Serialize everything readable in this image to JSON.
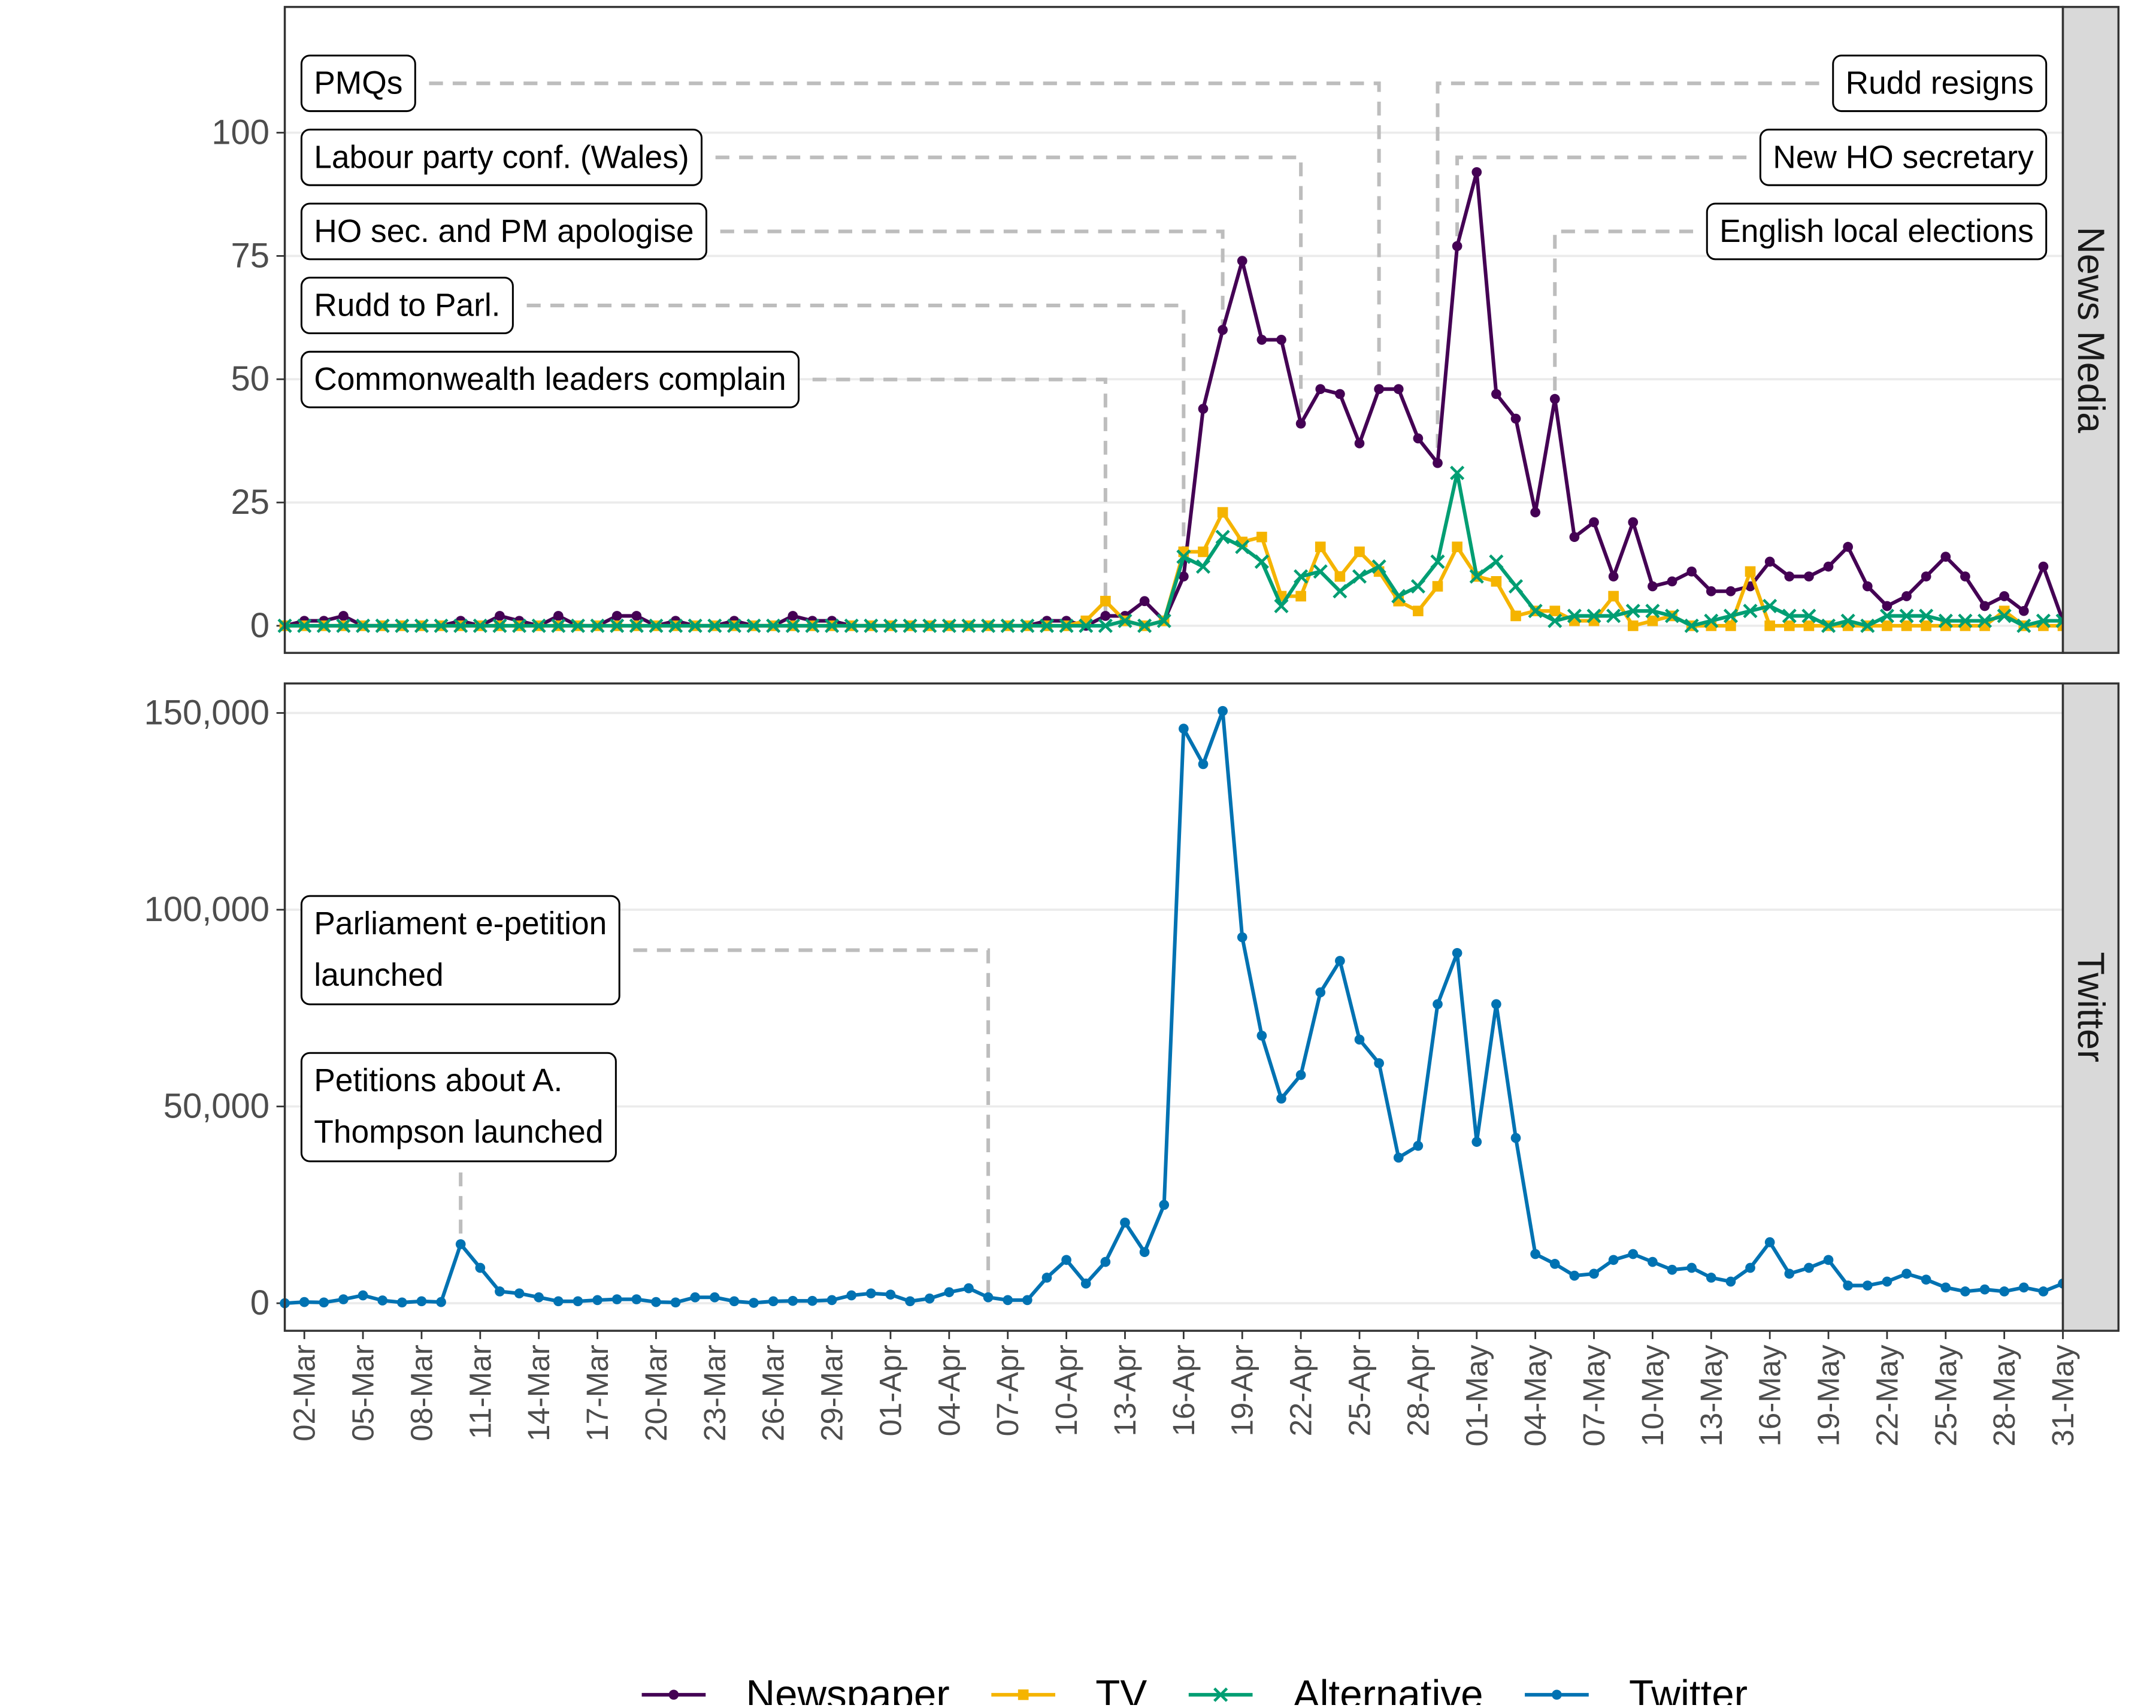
{
  "chart_data": [
    {
      "type": "line",
      "facet": "News Media",
      "x": [
        "01-Mar",
        "02-Mar",
        "03-Mar",
        "04-Mar",
        "05-Mar",
        "06-Mar",
        "07-Mar",
        "08-Mar",
        "09-Mar",
        "10-Mar",
        "11-Mar",
        "12-Mar",
        "13-Mar",
        "14-Mar",
        "15-Mar",
        "16-Mar",
        "17-Mar",
        "18-Mar",
        "19-Mar",
        "20-Mar",
        "21-Mar",
        "22-Mar",
        "23-Mar",
        "24-Mar",
        "25-Mar",
        "26-Mar",
        "27-Mar",
        "28-Mar",
        "29-Mar",
        "30-Mar",
        "31-Mar",
        "01-Apr",
        "02-Apr",
        "03-Apr",
        "04-Apr",
        "05-Apr",
        "06-Apr",
        "07-Apr",
        "08-Apr",
        "09-Apr",
        "10-Apr",
        "11-Apr",
        "12-Apr",
        "13-Apr",
        "14-Apr",
        "15-Apr",
        "16-Apr",
        "17-Apr",
        "18-Apr",
        "19-Apr",
        "20-Apr",
        "21-Apr",
        "22-Apr",
        "23-Apr",
        "24-Apr",
        "25-Apr",
        "26-Apr",
        "27-Apr",
        "28-Apr",
        "29-Apr",
        "30-Apr",
        "01-May",
        "02-May",
        "03-May",
        "04-May",
        "05-May",
        "06-May",
        "07-May",
        "08-May",
        "09-May",
        "10-May",
        "11-May",
        "12-May",
        "13-May",
        "14-May",
        "15-May",
        "16-May",
        "17-May",
        "18-May",
        "19-May",
        "20-May",
        "21-May",
        "22-May",
        "23-May",
        "24-May",
        "25-May",
        "26-May",
        "27-May",
        "28-May",
        "29-May",
        "30-May",
        "31-May"
      ],
      "xlim": [
        "01-Mar",
        "31-May"
      ],
      "ylim": [
        -5.5,
        125.5
      ],
      "yticks": [
        0,
        25,
        50,
        75,
        100
      ],
      "grid": true,
      "series": [
        {
          "name": "Newspaper",
          "color": "#440154",
          "marker": "circle",
          "values": [
            0,
            1,
            1,
            2,
            0,
            0,
            0,
            0,
            0,
            1,
            0,
            2,
            1,
            0,
            2,
            0,
            0,
            2,
            2,
            0,
            1,
            0,
            0,
            1,
            0,
            0,
            2,
            1,
            1,
            0,
            0,
            0,
            0,
            0,
            0,
            0,
            0,
            0,
            0,
            1,
            1,
            0,
            2,
            2,
            5,
            1,
            10,
            44,
            60,
            74,
            58,
            58,
            41,
            48,
            47,
            37,
            48,
            48,
            38,
            33,
            77,
            92,
            47,
            42,
            23,
            46,
            18,
            21,
            10,
            21,
            8,
            9,
            11,
            7,
            7,
            8,
            13,
            10,
            10,
            12,
            16,
            8,
            4,
            6,
            10,
            14,
            10,
            4,
            6,
            3,
            12,
            1
          ]
        },
        {
          "name": "TV",
          "color": "#f5b400",
          "marker": "square",
          "values": [
            0,
            0,
            0,
            0,
            0,
            0,
            0,
            0,
            0,
            0,
            0,
            0,
            0,
            0,
            0,
            0,
            0,
            0,
            0,
            0,
            0,
            0,
            0,
            0,
            0,
            0,
            0,
            0,
            0,
            0,
            0,
            0,
            0,
            0,
            0,
            0,
            0,
            0,
            0,
            0,
            0,
            1,
            5,
            1,
            0,
            1,
            15,
            15,
            23,
            17,
            18,
            6,
            6,
            16,
            10,
            15,
            11,
            5,
            3,
            8,
            16,
            10,
            9,
            2,
            3,
            3,
            1,
            1,
            6,
            0,
            1,
            2,
            0,
            0,
            0,
            11,
            0,
            0,
            0,
            0,
            0,
            0,
            0,
            0,
            0,
            0,
            0,
            0,
            3,
            0,
            0,
            0
          ]
        },
        {
          "name": "Alternative",
          "color": "#009e73",
          "marker": "x",
          "values": [
            0,
            0,
            0,
            0,
            0,
            0,
            0,
            0,
            0,
            0,
            0,
            0,
            0,
            0,
            0,
            0,
            0,
            0,
            0,
            0,
            0,
            0,
            0,
            0,
            0,
            0,
            0,
            0,
            0,
            0,
            0,
            0,
            0,
            0,
            0,
            0,
            0,
            0,
            0,
            0,
            0,
            0,
            0,
            1,
            0,
            1,
            14,
            12,
            18,
            16,
            13,
            4,
            10,
            11,
            7,
            10,
            12,
            6,
            8,
            13,
            31,
            10,
            13,
            8,
            3,
            1,
            2,
            2,
            2,
            3,
            3,
            2,
            0,
            1,
            2,
            3,
            4,
            2,
            2,
            0,
            1,
            0,
            2,
            2,
            2,
            1,
            1,
            1,
            2,
            0,
            1,
            1
          ]
        }
      ],
      "annotations": [
        {
          "label": "PMQs",
          "date": "26-Apr"
        },
        {
          "label": "Labour party conf. (Wales)",
          "date": "22-Apr"
        },
        {
          "label": "HO sec. and PM apologise",
          "date": "18-Apr"
        },
        {
          "label": "Rudd to Parl.",
          "date": "16-Apr"
        },
        {
          "label": "Commonwealth leaders complain",
          "date": "12-Apr"
        },
        {
          "label": "Rudd resigns",
          "date": "29-Apr"
        },
        {
          "label": "New HO secretary",
          "date": "30-Apr"
        },
        {
          "label": "English local elections",
          "date": "05-May"
        }
      ]
    },
    {
      "type": "line",
      "facet": "Twitter",
      "x": [
        "01-Mar",
        "02-Mar",
        "03-Mar",
        "04-Mar",
        "05-Mar",
        "06-Mar",
        "07-Mar",
        "08-Mar",
        "09-Mar",
        "10-Mar",
        "11-Mar",
        "12-Mar",
        "13-Mar",
        "14-Mar",
        "15-Mar",
        "16-Mar",
        "17-Mar",
        "18-Mar",
        "19-Mar",
        "20-Mar",
        "21-Mar",
        "22-Mar",
        "23-Mar",
        "24-Mar",
        "25-Mar",
        "26-Mar",
        "27-Mar",
        "28-Mar",
        "29-Mar",
        "30-Mar",
        "31-Mar",
        "01-Apr",
        "02-Apr",
        "03-Apr",
        "04-Apr",
        "05-Apr",
        "06-Apr",
        "07-Apr",
        "08-Apr",
        "09-Apr",
        "10-Apr",
        "11-Apr",
        "12-Apr",
        "13-Apr",
        "14-Apr",
        "15-Apr",
        "16-Apr",
        "17-Apr",
        "18-Apr",
        "19-Apr",
        "20-Apr",
        "21-Apr",
        "22-Apr",
        "23-Apr",
        "24-Apr",
        "25-Apr",
        "26-Apr",
        "27-Apr",
        "28-Apr",
        "29-Apr",
        "30-Apr",
        "01-May",
        "02-May",
        "03-May",
        "04-May",
        "05-May",
        "06-May",
        "07-May",
        "08-May",
        "09-May",
        "10-May",
        "11-May",
        "12-May",
        "13-May",
        "14-May",
        "15-May",
        "16-May",
        "17-May",
        "18-May",
        "19-May",
        "20-May",
        "21-May",
        "22-May",
        "23-May",
        "24-May",
        "25-May",
        "26-May",
        "27-May",
        "28-May",
        "29-May",
        "30-May",
        "31-May"
      ],
      "xlim": [
        "01-Mar",
        "31-May"
      ],
      "xticks": [
        "02-Mar",
        "05-Mar",
        "08-Mar",
        "11-Mar",
        "14-Mar",
        "17-Mar",
        "20-Mar",
        "23-Mar",
        "26-Mar",
        "29-Mar",
        "01-Apr",
        "04-Apr",
        "07-Apr",
        "10-Apr",
        "13-Apr",
        "16-Apr",
        "19-Apr",
        "22-Apr",
        "25-Apr",
        "28-Apr",
        "01-May",
        "04-May",
        "07-May",
        "10-May",
        "13-May",
        "16-May",
        "19-May",
        "22-May",
        "25-May",
        "28-May",
        "31-May"
      ],
      "ylim": [
        -7000,
        157500
      ],
      "yticks": [
        0,
        {
          "value": 50000,
          "label": "50,000"
        },
        {
          "value": 100000,
          "label": "100,000"
        },
        {
          "value": 150000,
          "label": "150,000"
        }
      ],
      "grid": true,
      "series": [
        {
          "name": "Twitter",
          "color": "#0072b2",
          "marker": "circle",
          "values": [
            0,
            300,
            200,
            1000,
            2000,
            700,
            200,
            500,
            300,
            15000,
            9000,
            3000,
            2500,
            1500,
            500,
            500,
            800,
            1000,
            1000,
            300,
            200,
            1500,
            1500,
            500,
            100,
            500,
            600,
            600,
            800,
            2000,
            2500,
            2200,
            500,
            1200,
            2800,
            3800,
            1500,
            800,
            800,
            6500,
            11000,
            5000,
            10500,
            20500,
            13000,
            25000,
            146000,
            137000,
            150500,
            93000,
            68000,
            52000,
            58000,
            79000,
            87000,
            67000,
            61000,
            37000,
            40000,
            76000,
            89000,
            41000,
            76000,
            42000,
            12500,
            10000,
            7000,
            7500,
            11000,
            12500,
            10500,
            8500,
            9000,
            6500,
            5500,
            9000,
            15500,
            7500,
            9000,
            11000,
            4500,
            4500,
            5500,
            7500,
            6000,
            4000,
            3000,
            3500,
            3000,
            4000,
            3000,
            5000
          ]
        }
      ],
      "annotations": [
        {
          "label": [
            "Parliament e-petition",
            "launched"
          ],
          "date": "06-Apr"
        },
        {
          "label": [
            "Petitions about A.",
            "Thompson launched"
          ],
          "date": "10-Mar"
        }
      ]
    }
  ]
}
